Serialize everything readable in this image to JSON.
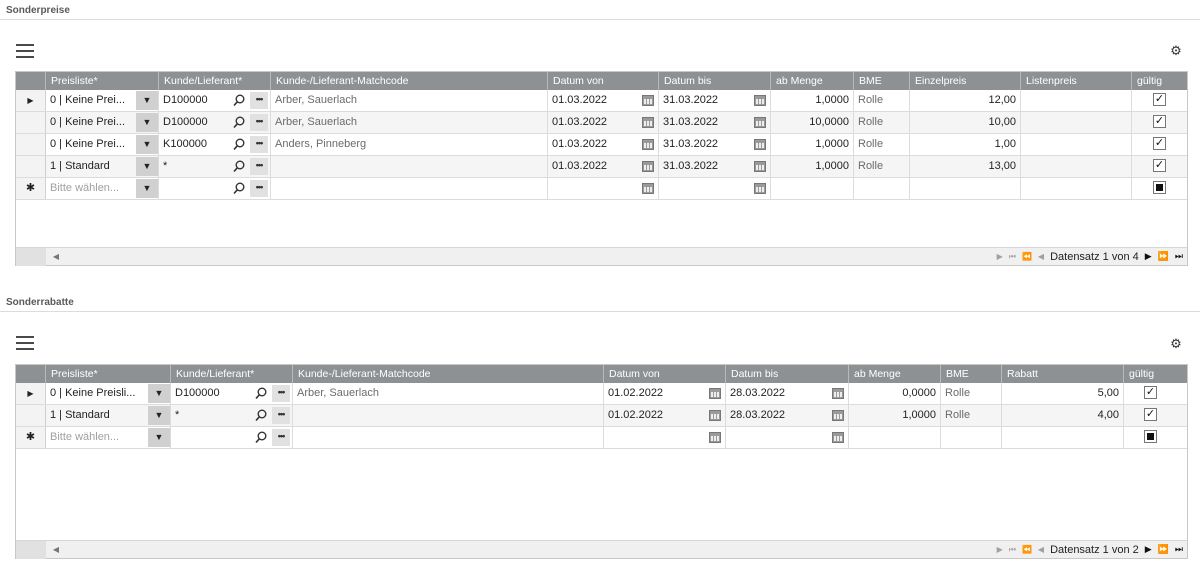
{
  "sonderpreise": {
    "title": "Sonderpreise",
    "headers": [
      "Preisliste*",
      "Kunde/Lieferant*",
      "Kunde-/Lieferant-Matchcode",
      "Datum von",
      "Datum bis",
      "ab Menge",
      "BME",
      "Einzelpreis",
      "Listenpreis",
      "gültig"
    ],
    "rows": [
      {
        "preisliste": "0 | Keine Prei...",
        "kunde": "D100000",
        "matchcode": "Arber, Sauerlach",
        "von": "01.03.2022",
        "bis": "31.03.2022",
        "menge": "1,0000",
        "bme": "Rolle",
        "einzelpreis": "12,00",
        "listenpreis": "",
        "gueltig": true
      },
      {
        "preisliste": "0 | Keine Prei...",
        "kunde": "D100000",
        "matchcode": "Arber, Sauerlach",
        "von": "01.03.2022",
        "bis": "31.03.2022",
        "menge": "10,0000",
        "bme": "Rolle",
        "einzelpreis": "10,00",
        "listenpreis": "",
        "gueltig": true
      },
      {
        "preisliste": "0 | Keine Prei...",
        "kunde": "K100000",
        "matchcode": "Anders, Pinneberg",
        "von": "01.03.2022",
        "bis": "31.03.2022",
        "menge": "1,0000",
        "bme": "Rolle",
        "einzelpreis": "1,00",
        "listenpreis": "",
        "gueltig": true
      },
      {
        "preisliste": "1 | Standard",
        "kunde": "*",
        "matchcode": "",
        "von": "01.03.2022",
        "bis": "31.03.2022",
        "menge": "1,0000",
        "bme": "Rolle",
        "einzelpreis": "13,00",
        "listenpreis": "",
        "gueltig": true
      }
    ],
    "new_row_placeholder": "Bitte wählen...",
    "pager_text": "Datensatz 1 von 4"
  },
  "sonderrabatte": {
    "title": "Sonderrabatte",
    "headers": [
      "Preisliste*",
      "Kunde/Lieferant*",
      "Kunde-/Lieferant-Matchcode",
      "Datum von",
      "Datum bis",
      "ab Menge",
      "BME",
      "Rabatt",
      "gültig"
    ],
    "rows": [
      {
        "preisliste": "0 | Keine Preisli...",
        "kunde": "D100000",
        "matchcode": "Arber, Sauerlach",
        "von": "01.02.2022",
        "bis": "28.03.2022",
        "menge": "0,0000",
        "bme": "Rolle",
        "rabatt": "5,00",
        "gueltig": true
      },
      {
        "preisliste": "1 | Standard",
        "kunde": "*",
        "matchcode": "",
        "von": "01.02.2022",
        "bis": "28.03.2022",
        "menge": "1,0000",
        "bme": "Rolle",
        "rabatt": "4,00",
        "gueltig": true
      }
    ],
    "new_row_placeholder": "Bitte wählen...",
    "pager_text": "Datensatz 1 von 2"
  },
  "icons": {
    "menu": "hamburger-menu-icon",
    "settings": "gear-icon",
    "dropdown": "chevron-down-icon",
    "search": "search-icon",
    "more": "ellipsis-icon",
    "calendar": "calendar-icon",
    "checkbox": "checkbox-icon",
    "current_row": "row-indicator-icon",
    "new_row": "new-row-icon"
  },
  "colors": {
    "header_bg": "#8e9194",
    "header_text": "#ffffff",
    "row_alt": "#f5f5f5",
    "section_title": "#5a5a5a"
  }
}
